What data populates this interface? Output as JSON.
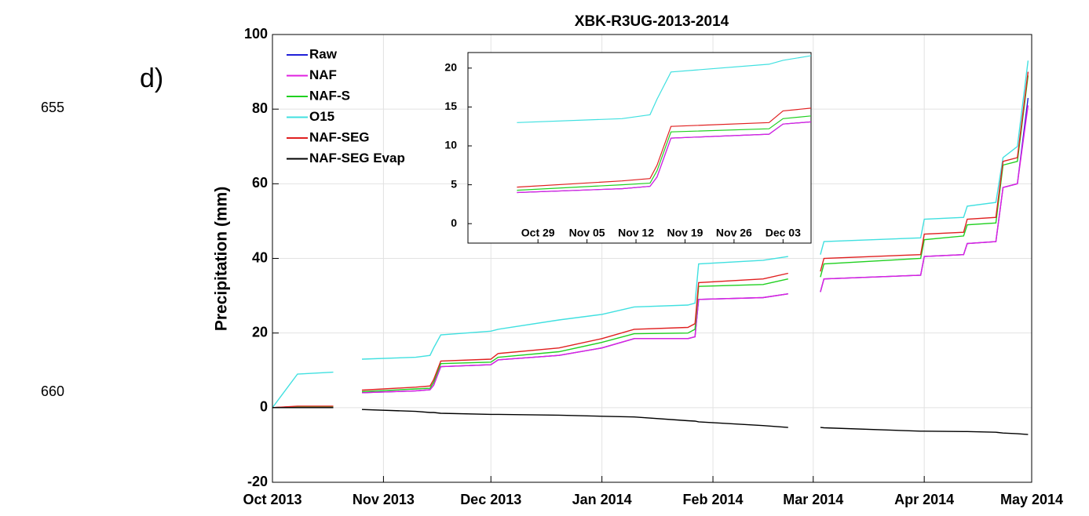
{
  "line_numbers": [
    "655",
    "660"
  ],
  "chart_data": {
    "type": "line",
    "panel_label": "d)",
    "title": "XBK-R3UG-2013-2014",
    "y_label": "Precipitation (mm)",
    "grid": true,
    "legend": "upper left",
    "xlim": [
      "2013-10-01",
      "2014-05-01"
    ],
    "xticks": [
      {
        "value": "2013-10-01",
        "label": "Oct 2013"
      },
      {
        "value": "2013-11-01",
        "label": "Nov 2013"
      },
      {
        "value": "2013-12-01",
        "label": "Dec 2013"
      },
      {
        "value": "2014-01-01",
        "label": "Jan 2014"
      },
      {
        "value": "2014-02-01",
        "label": "Feb 2014"
      },
      {
        "value": "2014-03-01",
        "label": "Mar 2014"
      },
      {
        "value": "2014-04-01",
        "label": "Apr 2014"
      },
      {
        "value": "2014-05-01",
        "label": "May 2014"
      }
    ],
    "ylim": [
      -20,
      100
    ],
    "yticks": [
      -20,
      0,
      20,
      40,
      60,
      80,
      100
    ],
    "x": [
      "2013-10-01",
      "2013-10-08",
      "2013-10-18",
      "2013-10-22",
      "2013-10-26",
      "2013-11-10",
      "2013-11-14",
      "2013-11-15",
      "2013-11-17",
      "2013-12-01",
      "2013-12-03",
      "2013-12-20",
      "2014-01-01",
      "2014-01-10",
      "2014-01-25",
      "2014-01-27",
      "2014-01-28",
      "2014-02-15",
      "2014-02-22",
      "2014-02-26",
      "2014-03-03",
      "2014-03-04",
      "2014-03-31",
      "2014-04-01",
      "2014-04-12",
      "2014-04-13",
      "2014-04-21",
      "2014-04-23",
      "2014-04-27",
      "2014-04-30"
    ],
    "series": [
      {
        "name": "Raw",
        "color": "#2020d8",
        "in_inset": true,
        "values": [
          0,
          0.3,
          0.3,
          null,
          4,
          4.5,
          4.8,
          6,
          11,
          11.5,
          12.8,
          14,
          16,
          18.5,
          18.5,
          19,
          29,
          29.5,
          30.5,
          null,
          31,
          34.5,
          35.5,
          40.5,
          41,
          44,
          44.5,
          59,
          60,
          83
        ]
      },
      {
        "name": "NAF",
        "color": "#e020e0",
        "in_inset": true,
        "values": [
          0,
          0.3,
          0.3,
          null,
          4,
          4.5,
          4.8,
          6,
          11,
          11.5,
          12.8,
          14,
          16,
          18.5,
          18.5,
          19,
          29,
          29.5,
          30.5,
          null,
          31,
          34.5,
          35.5,
          40.5,
          41,
          44,
          44.5,
          59,
          60,
          81
        ]
      },
      {
        "name": "NAF-S",
        "color": "#20d020",
        "in_inset": true,
        "values": [
          0,
          0.3,
          0.3,
          null,
          4.3,
          5,
          5.2,
          6.8,
          11.8,
          12.2,
          13.5,
          15,
          17.5,
          19.8,
          20,
          21,
          32.5,
          33,
          34.5,
          null,
          35,
          38.5,
          40,
          45,
          46,
          49,
          49.5,
          65,
          66,
          89
        ]
      },
      {
        "name": "O15",
        "color": "#40e0e0",
        "in_inset": true,
        "values": [
          0,
          9,
          9.5,
          null,
          13,
          13.5,
          14,
          16,
          19.5,
          20.5,
          21,
          23.5,
          25,
          27,
          27.5,
          28,
          38.5,
          39.5,
          40.5,
          null,
          41,
          44.5,
          45.5,
          50.5,
          51,
          54,
          55,
          67,
          70,
          93
        ]
      },
      {
        "name": "NAF-SEG",
        "color": "#e02020",
        "in_inset": true,
        "values": [
          0,
          0.4,
          0.4,
          null,
          4.7,
          5.5,
          5.8,
          7.5,
          12.5,
          13,
          14.5,
          16,
          18.5,
          21,
          21.5,
          22.5,
          33.5,
          34.5,
          36,
          null,
          36.5,
          40,
          41,
          46.5,
          47,
          50.5,
          51,
          66,
          67,
          90
        ]
      },
      {
        "name": "NAF-SEG Evap",
        "color": "#000000",
        "in_inset": false,
        "values": [
          0,
          0,
          0,
          null,
          -0.5,
          -1,
          -1.3,
          -1.3,
          -1.5,
          -1.8,
          -1.8,
          -2,
          -2.3,
          -2.5,
          -3.5,
          -3.6,
          -3.8,
          -4.8,
          -5.3,
          null,
          -5.3,
          -5.4,
          -6.3,
          -6.3,
          -6.4,
          -6.4,
          -6.6,
          -6.8,
          -7,
          -7.2
        ]
      }
    ],
    "inset": {
      "xlim": [
        "2013-10-19",
        "2013-12-07"
      ],
      "ylim": [
        -2.5,
        22
      ],
      "xticks": [
        {
          "value": "2013-10-29",
          "label": "Oct 29"
        },
        {
          "value": "2013-11-05",
          "label": "Nov 05"
        },
        {
          "value": "2013-11-12",
          "label": "Nov 12"
        },
        {
          "value": "2013-11-19",
          "label": "Nov 19"
        },
        {
          "value": "2013-11-26",
          "label": "Nov 26"
        },
        {
          "value": "2013-12-03",
          "label": "Dec 03"
        }
      ],
      "yticks": [
        0,
        5,
        10,
        15,
        20
      ]
    }
  }
}
